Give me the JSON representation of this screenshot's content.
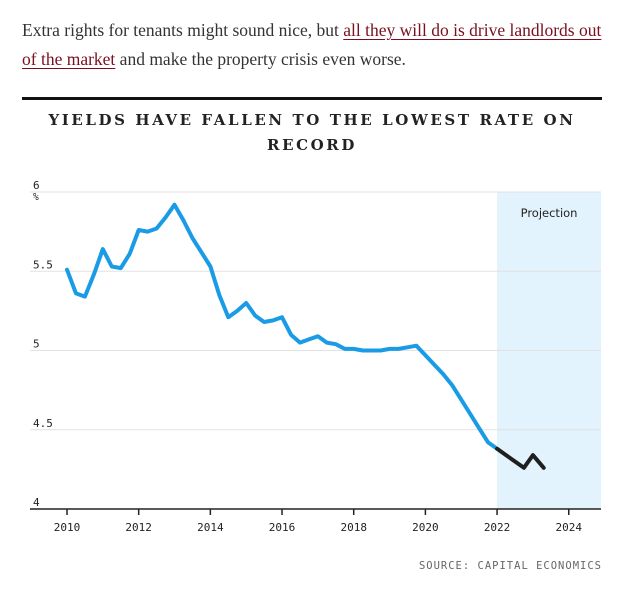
{
  "article": {
    "text_before": "Extra rights for tenants might sound nice, but ",
    "link_text": "all they will do is drive landlords out of the market",
    "text_after": " and make the property crisis even worse."
  },
  "chart_data": {
    "type": "line",
    "title": "YIELDS HAVE FALLEN TO THE LOWEST RATE ON RECORD",
    "ylabel": "%",
    "xlabel": "",
    "xlim": [
      2010,
      2024.9
    ],
    "ylim": [
      4,
      6
    ],
    "x_ticks": [
      "2010",
      "2012",
      "2014",
      "2016",
      "2018",
      "2020",
      "2022",
      "2024"
    ],
    "y_ticks": [
      "6",
      "5.5",
      "5",
      "4.5",
      "4"
    ],
    "grid": true,
    "projection": {
      "label": "Projection",
      "start": 2022,
      "end": 2024.9,
      "color": "#e3f3fd"
    },
    "series": [
      {
        "color": "#1a9be6",
        "points": [
          [
            2010.0,
            5.51
          ],
          [
            2010.25,
            5.36
          ],
          [
            2010.5,
            5.34
          ],
          [
            2010.75,
            5.48
          ],
          [
            2011.0,
            5.64
          ],
          [
            2011.25,
            5.53
          ],
          [
            2011.5,
            5.52
          ],
          [
            2011.75,
            5.61
          ],
          [
            2012.0,
            5.76
          ],
          [
            2012.25,
            5.75
          ],
          [
            2012.5,
            5.77
          ],
          [
            2012.75,
            5.84
          ],
          [
            2013.0,
            5.92
          ],
          [
            2013.25,
            5.82
          ],
          [
            2013.5,
            5.71
          ],
          [
            2013.75,
            5.62
          ],
          [
            2014.0,
            5.53
          ],
          [
            2014.25,
            5.35
          ],
          [
            2014.5,
            5.21
          ],
          [
            2014.75,
            5.25
          ],
          [
            2015.0,
            5.3
          ],
          [
            2015.25,
            5.22
          ],
          [
            2015.5,
            5.18
          ],
          [
            2015.75,
            5.19
          ],
          [
            2016.0,
            5.21
          ],
          [
            2016.25,
            5.1
          ],
          [
            2016.5,
            5.05
          ],
          [
            2016.75,
            5.07
          ],
          [
            2017.0,
            5.09
          ],
          [
            2017.25,
            5.05
          ],
          [
            2017.5,
            5.04
          ],
          [
            2017.75,
            5.01
          ],
          [
            2018.0,
            5.01
          ],
          [
            2018.25,
            5.0
          ],
          [
            2018.5,
            5.0
          ],
          [
            2018.75,
            5.0
          ],
          [
            2019.0,
            5.01
          ],
          [
            2019.25,
            5.01
          ],
          [
            2019.5,
            5.02
          ],
          [
            2019.75,
            5.03
          ],
          [
            2020.0,
            4.97
          ],
          [
            2020.25,
            4.91
          ],
          [
            2020.5,
            4.85
          ],
          [
            2020.75,
            4.78
          ],
          [
            2021.0,
            4.69
          ],
          [
            2021.25,
            4.6
          ],
          [
            2021.5,
            4.51
          ],
          [
            2021.75,
            4.42
          ],
          [
            2022.0,
            4.38
          ]
        ]
      },
      {
        "color": "#1f1f1f",
        "points": [
          [
            2022.0,
            4.38
          ],
          [
            2022.25,
            4.34
          ],
          [
            2022.5,
            4.3
          ],
          [
            2022.75,
            4.26
          ],
          [
            2023.0,
            4.34
          ],
          [
            2023.3,
            4.26
          ]
        ]
      }
    ],
    "source": "SOURCE: CAPITAL ECONOMICS"
  }
}
